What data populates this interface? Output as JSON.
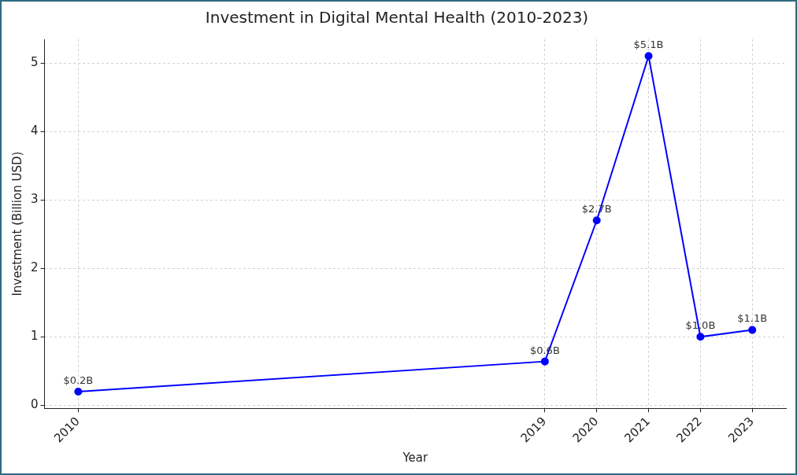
{
  "chart_data": {
    "type": "line",
    "title": "Investment in Digital Mental Health (2010-2023)",
    "x_label": "Year",
    "y_label": "Investment (Billion USD)",
    "x": [
      2010,
      2019,
      2020,
      2021,
      2022,
      2023
    ],
    "values": [
      0.2,
      0.64,
      2.7,
      5.1,
      1.0,
      1.1
    ],
    "value_labels": [
      "$0.2B",
      "$0.6B",
      "$2.7B",
      "$5.1B",
      "$1.0B",
      "$1.1B"
    ],
    "color": "#0000ff",
    "marker": "circle",
    "xlim": [
      2009.35,
      2023.65
    ],
    "ylim": [
      -0.045,
      5.345
    ],
    "xticks": [
      2010,
      2019,
      2020,
      2021,
      2022,
      2023
    ],
    "yticks": [
      0,
      1,
      2,
      3,
      4,
      5
    ],
    "grid": true,
    "data_labels": true
  }
}
